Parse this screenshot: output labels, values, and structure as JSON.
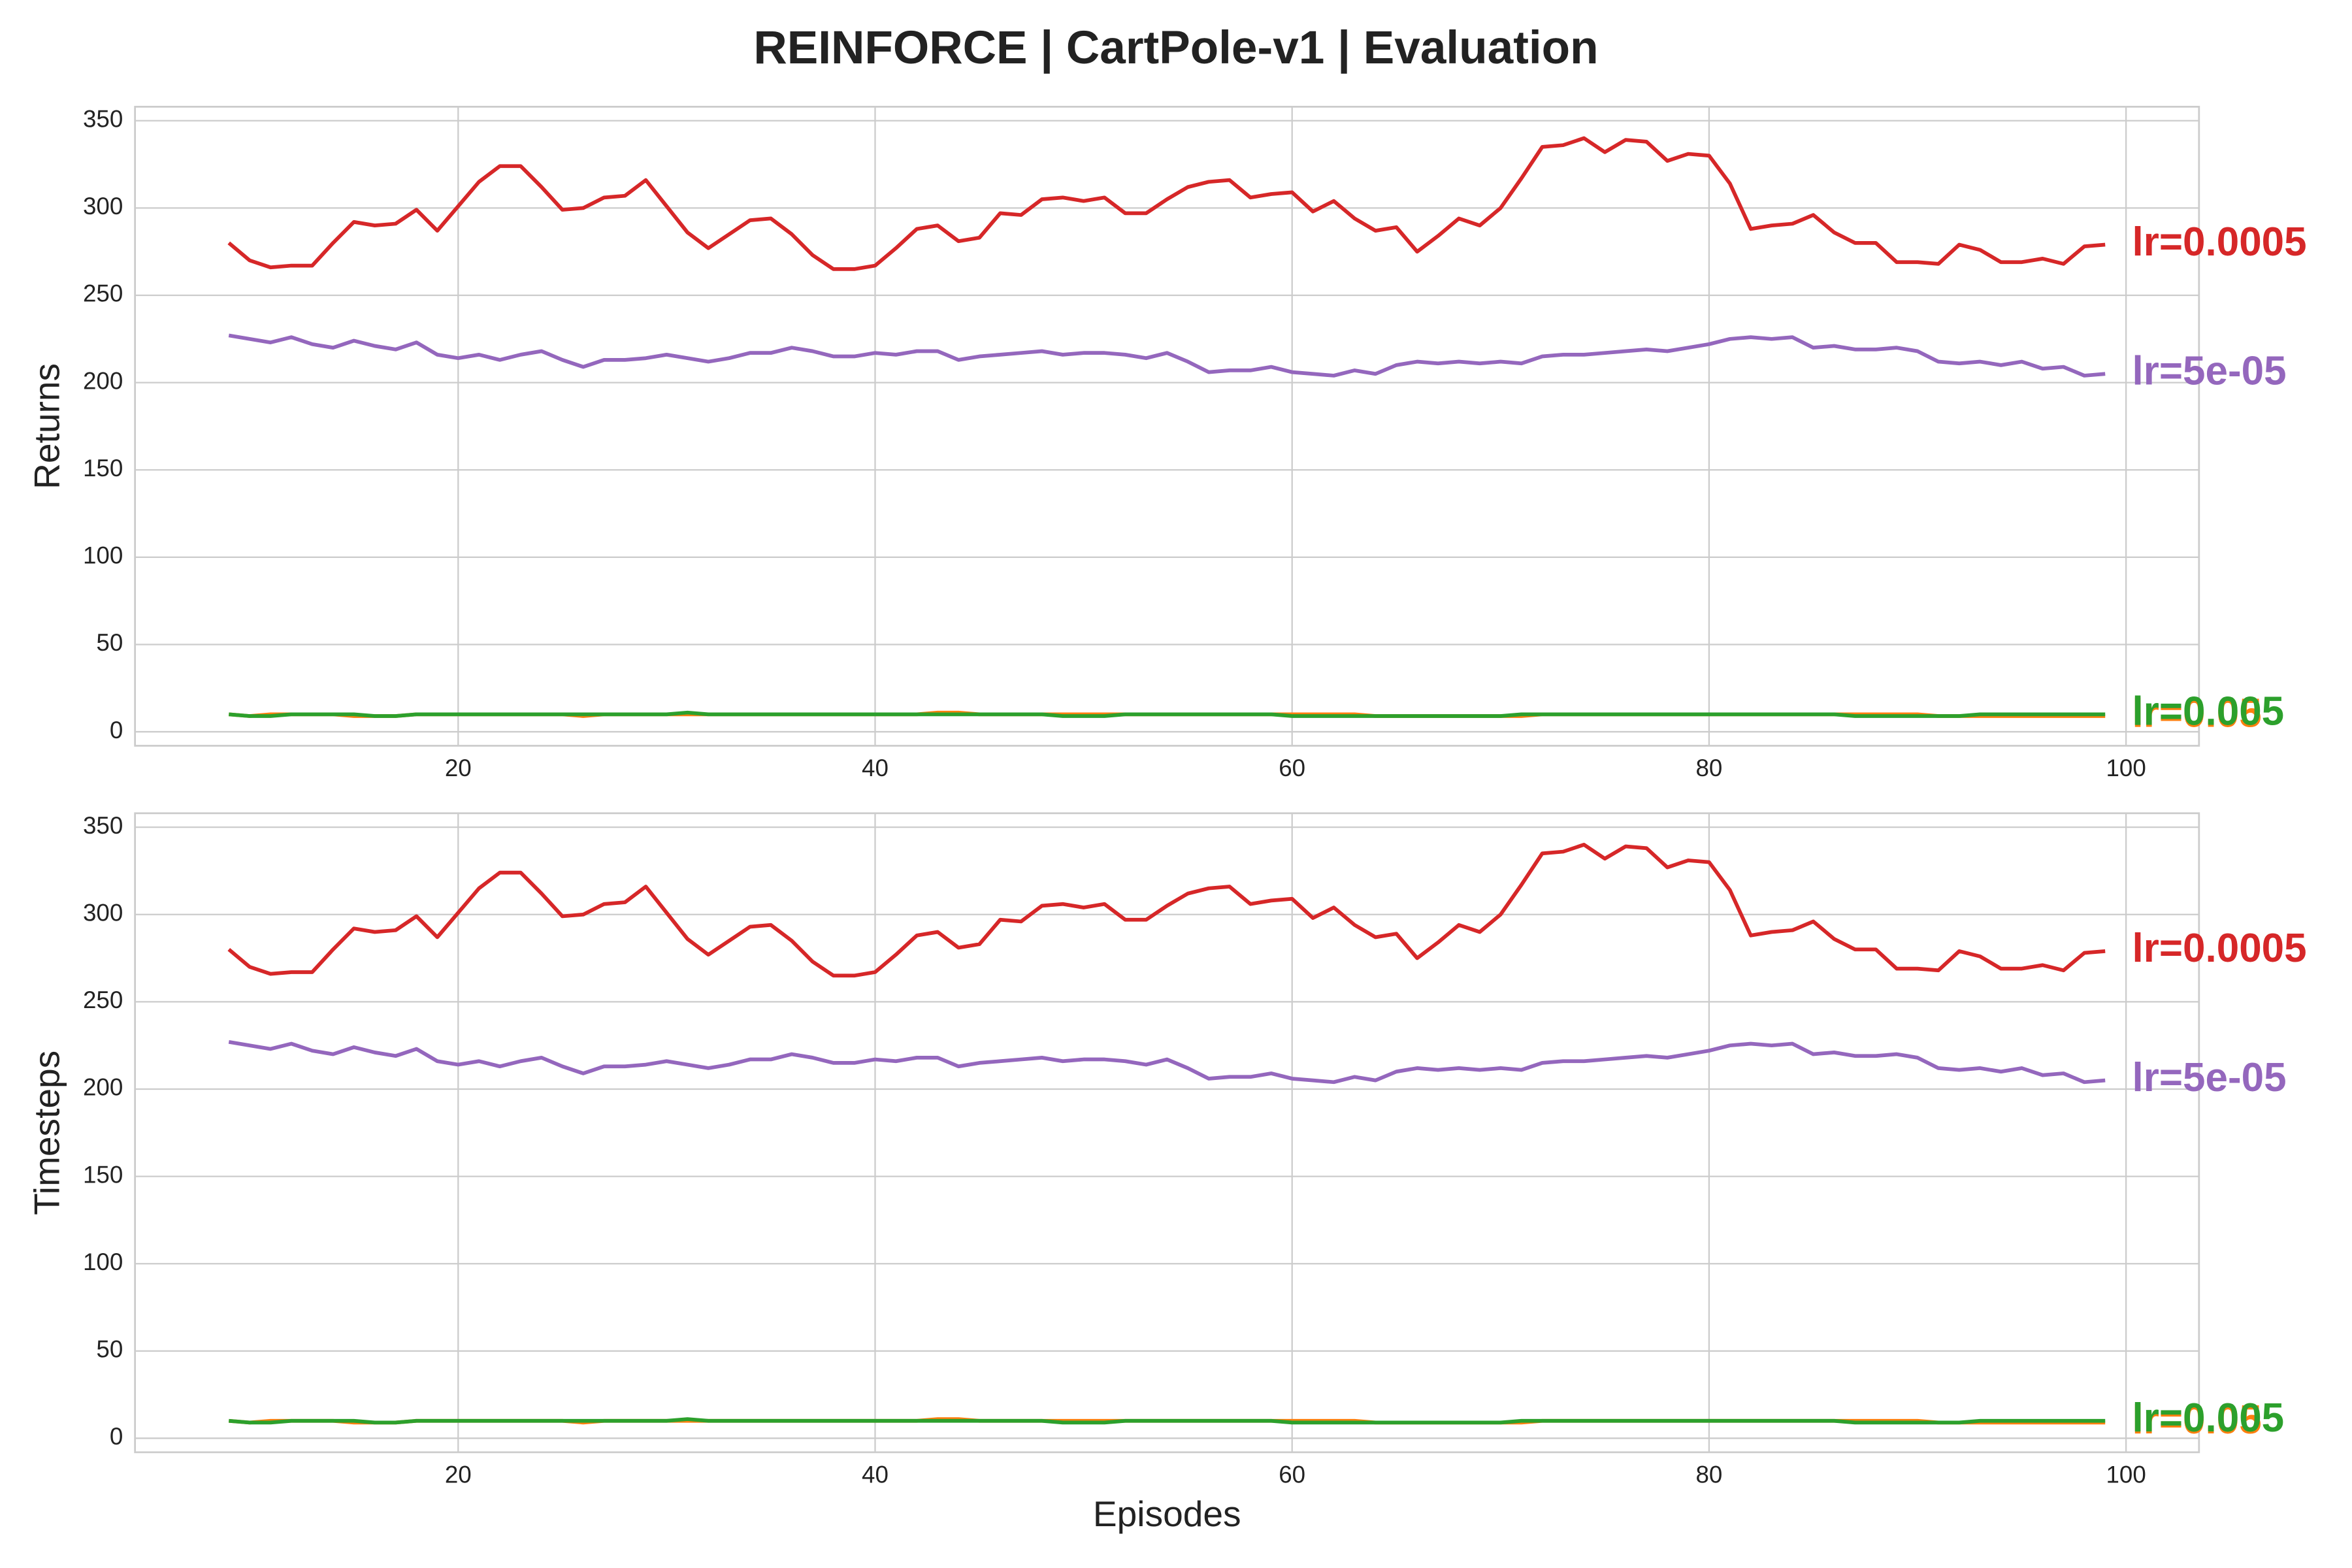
{
  "title": "REINFORCE | CartPole-v1 | Evaluation",
  "chart_data": [
    {
      "type": "line",
      "ylabel": "Returns",
      "grid": true,
      "label_position": "line-end",
      "xlim": [
        4.5,
        103.5
      ],
      "xticks": [
        20,
        40,
        60,
        80,
        100
      ],
      "ylim": [
        -8,
        358
      ],
      "yticks": [
        0,
        50,
        100,
        150,
        200,
        250,
        300,
        350
      ],
      "x": [
        9,
        10,
        11,
        12,
        13,
        14,
        15,
        16,
        17,
        18,
        19,
        20,
        21,
        22,
        23,
        24,
        25,
        26,
        27,
        28,
        29,
        30,
        31,
        32,
        33,
        34,
        35,
        36,
        37,
        38,
        39,
        40,
        41,
        42,
        43,
        44,
        45,
        46,
        47,
        48,
        49,
        50,
        51,
        52,
        53,
        54,
        55,
        56,
        57,
        58,
        59,
        60,
        61,
        62,
        63,
        64,
        65,
        66,
        67,
        68,
        69,
        70,
        71,
        72,
        73,
        74,
        75,
        76,
        77,
        78,
        79,
        80,
        81,
        82,
        83,
        84,
        85,
        86,
        87,
        88,
        89,
        90,
        91,
        92,
        93,
        94,
        95,
        96,
        97,
        98,
        99
      ],
      "series": [
        {
          "name": "lr=0.0005",
          "color": "#d62728",
          "values": [
            280,
            270,
            266,
            267,
            267,
            280,
            292,
            290,
            291,
            299,
            287,
            301,
            315,
            324,
            324,
            312,
            299,
            300,
            306,
            307,
            316,
            301,
            286,
            277,
            285,
            293,
            294,
            285,
            273,
            265,
            265,
            267,
            277,
            288,
            290,
            281,
            283,
            297,
            296,
            305,
            306,
            304,
            306,
            297,
            297,
            305,
            312,
            315,
            316,
            306,
            308,
            309,
            298,
            304,
            294,
            287,
            289,
            275,
            284,
            294,
            290,
            300,
            317,
            335,
            336,
            340,
            332,
            339,
            338,
            327,
            331,
            330,
            314,
            288,
            290,
            291,
            296,
            286,
            280,
            280,
            269,
            269,
            268,
            279,
            276,
            269,
            269,
            271,
            268,
            278,
            279
          ]
        },
        {
          "name": "lr=5e-05",
          "color": "#9467bd",
          "values": [
            227,
            225,
            223,
            226,
            222,
            220,
            224,
            221,
            219,
            223,
            216,
            214,
            216,
            213,
            216,
            218,
            213,
            209,
            213,
            213,
            214,
            216,
            214,
            212,
            214,
            217,
            217,
            220,
            218,
            215,
            215,
            217,
            216,
            218,
            218,
            213,
            215,
            216,
            217,
            218,
            216,
            217,
            217,
            216,
            214,
            217,
            212,
            206,
            207,
            207,
            209,
            206,
            205,
            204,
            207,
            205,
            210,
            212,
            211,
            212,
            211,
            212,
            211,
            215,
            216,
            216,
            217,
            218,
            219,
            218,
            220,
            222,
            225,
            226,
            225,
            226,
            220,
            221,
            219,
            219,
            220,
            218,
            212,
            211,
            212,
            210,
            212,
            208,
            209,
            204,
            205
          ]
        },
        {
          "name": "lr=0.05",
          "color": "#ff7f0e",
          "values": [
            10,
            9,
            10,
            10,
            10,
            10,
            9,
            9,
            9,
            10,
            10,
            10,
            10,
            10,
            10,
            10,
            10,
            9,
            10,
            10,
            10,
            10,
            10,
            10,
            10,
            10,
            10,
            10,
            10,
            10,
            10,
            10,
            10,
            10,
            11,
            11,
            10,
            10,
            10,
            10,
            10,
            10,
            10,
            10,
            10,
            10,
            10,
            10,
            10,
            10,
            10,
            10,
            10,
            10,
            10,
            9,
            9,
            9,
            9,
            9,
            9,
            9,
            9,
            10,
            10,
            10,
            10,
            10,
            10,
            10,
            10,
            10,
            10,
            10,
            10,
            10,
            10,
            10,
            10,
            10,
            10,
            10,
            9,
            9,
            9,
            9,
            9,
            9,
            9,
            9,
            9
          ]
        },
        {
          "name": "lr=0.005",
          "color": "#2ca02c",
          "values": [
            10,
            9,
            9,
            10,
            10,
            10,
            10,
            9,
            9,
            10,
            10,
            10,
            10,
            10,
            10,
            10,
            10,
            10,
            10,
            10,
            10,
            10,
            11,
            10,
            10,
            10,
            10,
            10,
            10,
            10,
            10,
            10,
            10,
            10,
            10,
            10,
            10,
            10,
            10,
            10,
            9,
            9,
            9,
            10,
            10,
            10,
            10,
            10,
            10,
            10,
            10,
            9,
            9,
            9,
            9,
            9,
            9,
            9,
            9,
            9,
            9,
            9,
            10,
            10,
            10,
            10,
            10,
            10,
            10,
            10,
            10,
            10,
            10,
            10,
            10,
            10,
            10,
            10,
            9,
            9,
            9,
            9,
            9,
            9,
            10,
            10,
            10,
            10,
            10,
            10,
            10
          ]
        }
      ]
    },
    {
      "type": "line",
      "ylabel": "Timesteps",
      "xlabel": "Episodes",
      "grid": true,
      "label_position": "line-end",
      "xlim": [
        4.5,
        103.5
      ],
      "xticks": [
        20,
        40,
        60,
        80,
        100
      ],
      "ylim": [
        -8,
        358
      ],
      "yticks": [
        0,
        50,
        100,
        150,
        200,
        250,
        300,
        350
      ],
      "x": [
        9,
        10,
        11,
        12,
        13,
        14,
        15,
        16,
        17,
        18,
        19,
        20,
        21,
        22,
        23,
        24,
        25,
        26,
        27,
        28,
        29,
        30,
        31,
        32,
        33,
        34,
        35,
        36,
        37,
        38,
        39,
        40,
        41,
        42,
        43,
        44,
        45,
        46,
        47,
        48,
        49,
        50,
        51,
        52,
        53,
        54,
        55,
        56,
        57,
        58,
        59,
        60,
        61,
        62,
        63,
        64,
        65,
        66,
        67,
        68,
        69,
        70,
        71,
        72,
        73,
        74,
        75,
        76,
        77,
        78,
        79,
        80,
        81,
        82,
        83,
        84,
        85,
        86,
        87,
        88,
        89,
        90,
        91,
        92,
        93,
        94,
        95,
        96,
        97,
        98,
        99
      ],
      "series": [
        {
          "name": "lr=0.0005",
          "color": "#d62728",
          "values": [
            280,
            270,
            266,
            267,
            267,
            280,
            292,
            290,
            291,
            299,
            287,
            301,
            315,
            324,
            324,
            312,
            299,
            300,
            306,
            307,
            316,
            301,
            286,
            277,
            285,
            293,
            294,
            285,
            273,
            265,
            265,
            267,
            277,
            288,
            290,
            281,
            283,
            297,
            296,
            305,
            306,
            304,
            306,
            297,
            297,
            305,
            312,
            315,
            316,
            306,
            308,
            309,
            298,
            304,
            294,
            287,
            289,
            275,
            284,
            294,
            290,
            300,
            317,
            335,
            336,
            340,
            332,
            339,
            338,
            327,
            331,
            330,
            314,
            288,
            290,
            291,
            296,
            286,
            280,
            280,
            269,
            269,
            268,
            279,
            276,
            269,
            269,
            271,
            268,
            278,
            279
          ]
        },
        {
          "name": "lr=5e-05",
          "color": "#9467bd",
          "values": [
            227,
            225,
            223,
            226,
            222,
            220,
            224,
            221,
            219,
            223,
            216,
            214,
            216,
            213,
            216,
            218,
            213,
            209,
            213,
            213,
            214,
            216,
            214,
            212,
            214,
            217,
            217,
            220,
            218,
            215,
            215,
            217,
            216,
            218,
            218,
            213,
            215,
            216,
            217,
            218,
            216,
            217,
            217,
            216,
            214,
            217,
            212,
            206,
            207,
            207,
            209,
            206,
            205,
            204,
            207,
            205,
            210,
            212,
            211,
            212,
            211,
            212,
            211,
            215,
            216,
            216,
            217,
            218,
            219,
            218,
            220,
            222,
            225,
            226,
            225,
            226,
            220,
            221,
            219,
            219,
            220,
            218,
            212,
            211,
            212,
            210,
            212,
            208,
            209,
            204,
            205
          ]
        },
        {
          "name": "lr=0.05",
          "color": "#ff7f0e",
          "values": [
            10,
            9,
            10,
            10,
            10,
            10,
            9,
            9,
            9,
            10,
            10,
            10,
            10,
            10,
            10,
            10,
            10,
            9,
            10,
            10,
            10,
            10,
            10,
            10,
            10,
            10,
            10,
            10,
            10,
            10,
            10,
            10,
            10,
            10,
            11,
            11,
            10,
            10,
            10,
            10,
            10,
            10,
            10,
            10,
            10,
            10,
            10,
            10,
            10,
            10,
            10,
            10,
            10,
            10,
            10,
            9,
            9,
            9,
            9,
            9,
            9,
            9,
            9,
            10,
            10,
            10,
            10,
            10,
            10,
            10,
            10,
            10,
            10,
            10,
            10,
            10,
            10,
            10,
            10,
            10,
            10,
            10,
            9,
            9,
            9,
            9,
            9,
            9,
            9,
            9,
            9
          ]
        },
        {
          "name": "lr=0.005",
          "color": "#2ca02c",
          "values": [
            10,
            9,
            9,
            10,
            10,
            10,
            10,
            9,
            9,
            10,
            10,
            10,
            10,
            10,
            10,
            10,
            10,
            10,
            10,
            10,
            10,
            10,
            11,
            10,
            10,
            10,
            10,
            10,
            10,
            10,
            10,
            10,
            10,
            10,
            10,
            10,
            10,
            10,
            10,
            10,
            9,
            9,
            9,
            10,
            10,
            10,
            10,
            10,
            10,
            10,
            10,
            9,
            9,
            9,
            9,
            9,
            9,
            9,
            9,
            9,
            9,
            9,
            10,
            10,
            10,
            10,
            10,
            10,
            10,
            10,
            10,
            10,
            10,
            10,
            10,
            10,
            10,
            10,
            9,
            9,
            9,
            9,
            9,
            9,
            10,
            10,
            10,
            10,
            10,
            10,
            10
          ]
        }
      ]
    }
  ]
}
